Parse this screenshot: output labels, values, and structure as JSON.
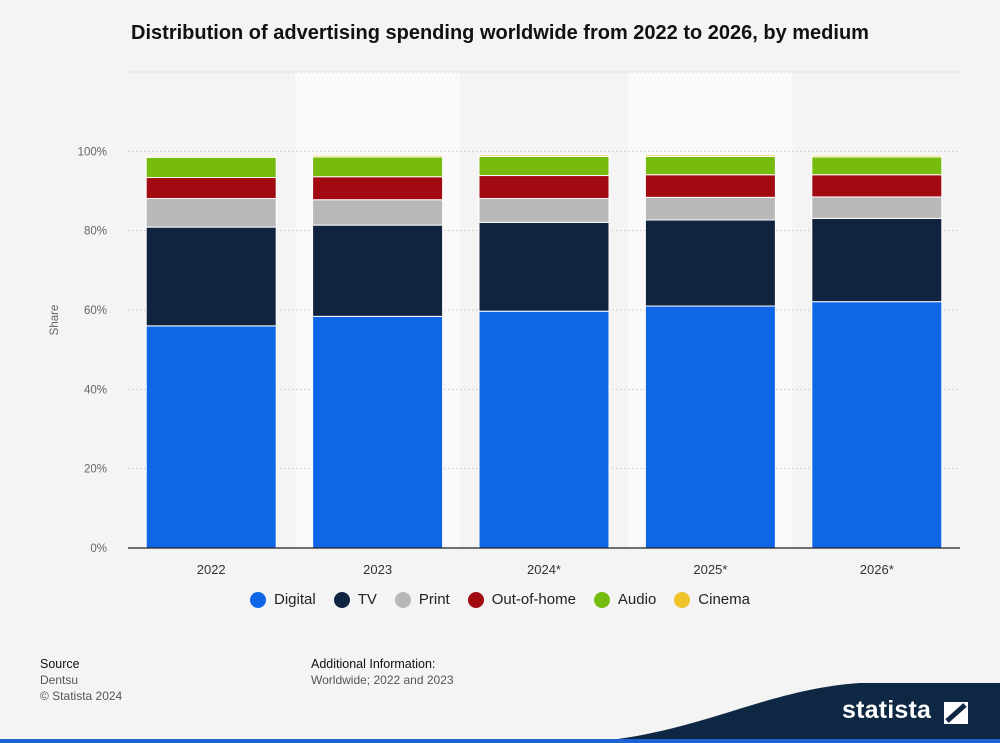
{
  "title": "Distribution of advertising spending worldwide from 2022 to 2026, by medium",
  "chart_data": {
    "type": "bar",
    "stacked": true,
    "title": "Distribution of advertising spending worldwide from 2022 to 2026, by medium",
    "xlabel": "",
    "ylabel": "Share",
    "ylim": [
      0,
      120
    ],
    "yticks": [
      "0%",
      "20%",
      "40%",
      "60%",
      "80%",
      "100%"
    ],
    "categories": [
      "2022",
      "2023",
      "2024*",
      "2025*",
      "2026*"
    ],
    "series": [
      {
        "name": "Digital",
        "color": "#0f66e6",
        "values": [
          56.0,
          58.4,
          59.7,
          61.0,
          62.1
        ]
      },
      {
        "name": "TV",
        "color": "#10243f",
        "values": [
          24.9,
          23.0,
          22.4,
          21.7,
          21.0
        ]
      },
      {
        "name": "Print",
        "color": "#b8b8b8",
        "values": [
          7.2,
          6.4,
          6.0,
          5.7,
          5.4
        ]
      },
      {
        "name": "Out-of-home",
        "color": "#a10a10",
        "values": [
          5.3,
          5.8,
          5.8,
          5.7,
          5.6
        ]
      },
      {
        "name": "Audio",
        "color": "#77bb0f",
        "values": [
          5.1,
          5.0,
          4.8,
          4.6,
          4.5
        ]
      },
      {
        "name": "Cinema",
        "color": "#eec32b",
        "values": [
          0.3,
          0.4,
          0.4,
          0.4,
          0.4
        ]
      }
    ]
  },
  "footer": {
    "source_heading": "Source",
    "source_name": "Dentsu",
    "copyright": "© Statista 2024",
    "info_heading": "Additional Information:",
    "info_text": "Worldwide; 2022 and 2023"
  },
  "brand": {
    "name": "statista",
    "color": "#1c64d6"
  }
}
